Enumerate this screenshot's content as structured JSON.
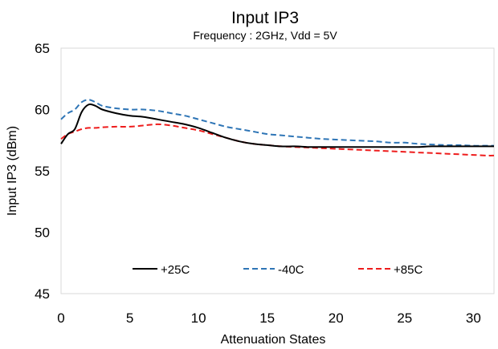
{
  "chart_data": {
    "type": "line",
    "title": "Input IP3",
    "subtitle": "Frequency : 2GHz, Vdd = 5V",
    "xlabel": "Attenuation States",
    "ylabel": "Input IP3 (dBm)",
    "xlim": [
      0,
      31.5
    ],
    "ylim": [
      45,
      65
    ],
    "xticks": [
      0,
      5,
      10,
      15,
      20,
      25,
      30
    ],
    "yticks": [
      45,
      50,
      55,
      60,
      65
    ],
    "grid": false,
    "legend_position": "bottom-inside",
    "series": [
      {
        "name": "+25C",
        "color": "#000000",
        "dash": "solid",
        "x": [
          0,
          0.5,
          1,
          1.5,
          2,
          2.5,
          3,
          4,
          5,
          6,
          7,
          8,
          9,
          10,
          11,
          12,
          13,
          14,
          15,
          16,
          17,
          18,
          19,
          20,
          21,
          22,
          23,
          24,
          25,
          26,
          27,
          28,
          29,
          30,
          31,
          31.5
        ],
        "values": [
          57.2,
          58.0,
          58.4,
          59.8,
          60.4,
          60.3,
          60.0,
          59.7,
          59.5,
          59.4,
          59.2,
          59.0,
          58.8,
          58.5,
          58.1,
          57.7,
          57.4,
          57.2,
          57.1,
          57.0,
          57.0,
          56.95,
          56.95,
          56.95,
          56.95,
          56.95,
          56.95,
          56.95,
          56.95,
          56.95,
          57.0,
          57.0,
          57.0,
          57.0,
          57.0,
          57.0
        ]
      },
      {
        "name": "-40C",
        "color": "#2e75b6",
        "dash": "dashed",
        "x": [
          0,
          0.5,
          1,
          1.5,
          2,
          2.5,
          3,
          4,
          5,
          6,
          7,
          8,
          9,
          10,
          11,
          12,
          13,
          14,
          15,
          16,
          17,
          18,
          19,
          20,
          21,
          22,
          23,
          24,
          25,
          26,
          27,
          28,
          29,
          30,
          31,
          31.5
        ],
        "values": [
          59.2,
          59.7,
          60.0,
          60.6,
          60.8,
          60.6,
          60.3,
          60.1,
          60.0,
          60.0,
          59.9,
          59.7,
          59.5,
          59.2,
          58.9,
          58.6,
          58.4,
          58.2,
          58.0,
          57.9,
          57.8,
          57.7,
          57.6,
          57.55,
          57.5,
          57.45,
          57.4,
          57.3,
          57.3,
          57.2,
          57.15,
          57.1,
          57.1,
          57.05,
          57.05,
          57.05
        ]
      },
      {
        "name": "+85C",
        "color": "#ee1c1c",
        "dash": "dashed",
        "x": [
          0,
          0.5,
          1,
          1.5,
          2,
          2.5,
          3,
          4,
          5,
          6,
          7,
          8,
          9,
          10,
          11,
          12,
          13,
          14,
          15,
          16,
          17,
          18,
          19,
          20,
          21,
          22,
          23,
          24,
          25,
          26,
          27,
          28,
          29,
          30,
          31,
          31.5
        ],
        "values": [
          57.6,
          58.0,
          58.2,
          58.4,
          58.5,
          58.5,
          58.55,
          58.6,
          58.6,
          58.7,
          58.8,
          58.7,
          58.5,
          58.3,
          58.0,
          57.7,
          57.4,
          57.2,
          57.1,
          57.0,
          56.95,
          56.9,
          56.85,
          56.8,
          56.75,
          56.7,
          56.65,
          56.6,
          56.55,
          56.5,
          56.45,
          56.4,
          56.35,
          56.3,
          56.25,
          56.25
        ]
      }
    ]
  }
}
